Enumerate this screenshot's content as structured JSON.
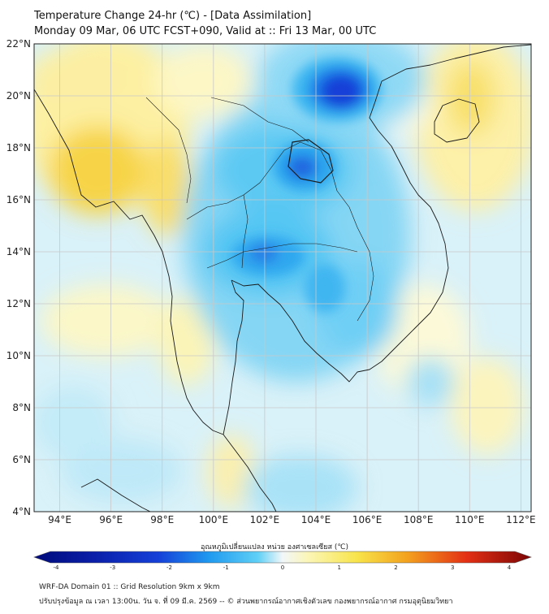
{
  "header": {
    "title": "Temperature Change 24-hr (℃) - [Data Assimilation]",
    "subtitle": "Monday 09 Mar, 06 UTC FCST+090, Valid at :: Fri 13 Mar, 00 UTC"
  },
  "axes": {
    "lat_labels": [
      "22°N",
      "20°N",
      "18°N",
      "16°N",
      "14°N",
      "12°N",
      "10°N",
      "8°N",
      "6°N",
      "4°N"
    ],
    "lon_labels": [
      "94°E",
      "96°E",
      "98°E",
      "100°E",
      "102°E",
      "104°E",
      "106°E",
      "108°E",
      "110°E",
      "112°E"
    ],
    "lat_range": [
      4,
      22
    ],
    "lon_range": [
      93,
      112.4
    ]
  },
  "colorbar": {
    "title": "อุณหภูมิเปลี่ยนแปลง หน่วย องศาเซลเซียส (℃)",
    "tick_labels": [
      "-4",
      "-3",
      "-2",
      "-1",
      "0",
      "1",
      "2",
      "3",
      "4"
    ],
    "min": -4,
    "max": 4
  },
  "footer": {
    "line1": "WRF-DA Domain 01 :: Grid Resolution 9km x 9km",
    "line2": "ปรับปรุงข้อมูล ณ เวลา 13:00น. วัน จ. ที่ 09 มี.ค. 2569 -- © ส่วนพยากรณ์อากาศเชิงตัวเลข กองพยากรณ์อากาศ กรมอุตุนิยมวิทยา"
  },
  "colors": {
    "yellow": "#fdf2a0",
    "gold": "#f6cf38",
    "light_yellow": "#fbf9cc",
    "cyan_light": "#d8f2fb",
    "cyan": "#9ce0f6",
    "sky": "#45c5f3",
    "blue": "#1f98ef",
    "deep_blue": "#1540d8",
    "navy": "#0a1ea8",
    "coast": "#1a1a1a",
    "grid": "#c8c8c8"
  }
}
